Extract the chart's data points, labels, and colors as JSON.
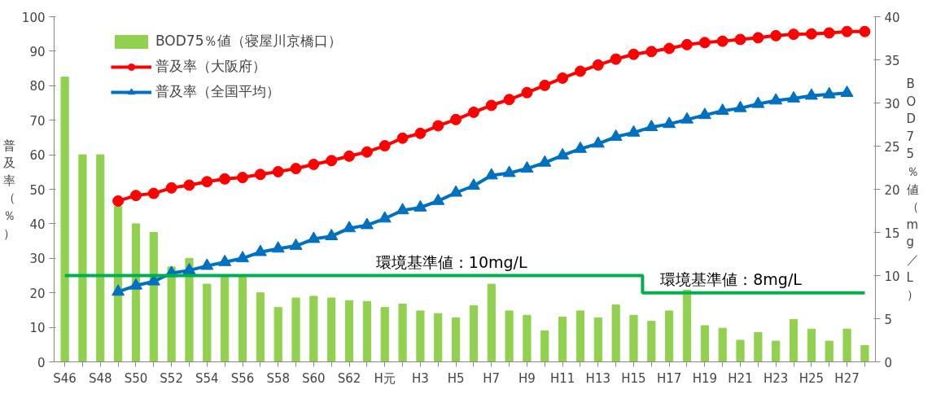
{
  "chart_data": {
    "type": "bar",
    "ylabel": "普及率（％）",
    "y2label": "BOD75％値（mg／L）",
    "categories": [
      "S46",
      null,
      "S48",
      null,
      "S50",
      null,
      "S52",
      null,
      "S54",
      null,
      "S56",
      null,
      "S58",
      null,
      "S60",
      null,
      "S62",
      null,
      "H元",
      null,
      "H3",
      null,
      "H5",
      null,
      "H7",
      null,
      "H9",
      null,
      "H11",
      null,
      "H13",
      null,
      "H15",
      null,
      "H17",
      null,
      "H19",
      null,
      "H21",
      null,
      "H23",
      null,
      "H25",
      null,
      "H27",
      null
    ],
    "series": [
      {
        "name": "BOD75％値（寝屋川京橋口）",
        "axis": "y2",
        "color": "#92d050",
        "values": [
          33,
          24,
          24,
          18,
          16,
          15,
          11,
          12,
          9,
          10,
          10,
          8,
          6.3,
          7.4,
          7.6,
          7.4,
          7.1,
          7.0,
          6.3,
          6.7,
          5.9,
          5.6,
          5.1,
          6.5,
          9.0,
          5.9,
          5.4,
          3.6,
          5.2,
          5.9,
          5.1,
          6.6,
          5.4,
          4.7,
          5.9,
          8.3,
          4.2,
          3.9,
          2.5,
          3.4,
          2.4,
          4.9,
          3.8,
          2.4,
          3.8,
          1.9
        ]
      },
      {
        "name": "普及率（大阪府）",
        "type": "line",
        "marker": "circle",
        "color": "#ff0000",
        "values": [
          null,
          null,
          null,
          46.6,
          48.2,
          48.8,
          50.4,
          51.2,
          52.2,
          53.0,
          53.4,
          54.3,
          55.1,
          56.0,
          57.2,
          58.3,
          59.6,
          60.8,
          62.6,
          64.8,
          66.2,
          68.4,
          70.2,
          72.3,
          74.3,
          76.0,
          78.0,
          80.1,
          82.2,
          84.2,
          86.0,
          87.7,
          89.1,
          89.9,
          90.8,
          91.9,
          92.5,
          92.9,
          93.4,
          93.9,
          94.5,
          94.9,
          95.0,
          95.3,
          95.7,
          95.7
        ]
      },
      {
        "name": "普及率（全国平均）",
        "type": "line",
        "marker": "triangle",
        "color": "#0070c0",
        "values": [
          null,
          null,
          null,
          20.3,
          22.1,
          23.3,
          25.7,
          26.5,
          27.8,
          28.9,
          30.0,
          31.8,
          32.8,
          33.6,
          35.6,
          36.4,
          38.7,
          39.6,
          41.5,
          43.9,
          44.7,
          46.6,
          49.0,
          51.0,
          54.0,
          54.7,
          56.0,
          57.7,
          59.8,
          61.7,
          63.2,
          65.2,
          66.4,
          68.0,
          68.9,
          70.2,
          71.5,
          72.7,
          73.5,
          74.7,
          75.7,
          76.3,
          77.1,
          77.5,
          77.9,
          null
        ]
      },
      {
        "type": "step",
        "axis": "y2",
        "color": "#00b050",
        "values": [
          10,
          10,
          10,
          10,
          10,
          10,
          10,
          10,
          10,
          10,
          10,
          10,
          10,
          10,
          10,
          10,
          10,
          10,
          10,
          10,
          10,
          10,
          10,
          10,
          10,
          10,
          10,
          10,
          10,
          10,
          10,
          10,
          10,
          8,
          8,
          8,
          8,
          8,
          8,
          8,
          8,
          8,
          8,
          8,
          8,
          8
        ]
      }
    ],
    "annotations": [
      {
        "text": "環境基準値：10mg/L",
        "x": "H元",
        "y": 25
      },
      {
        "text": "環境基準値：8mg/L",
        "x": "H17",
        "y": 20
      }
    ],
    "ylim": [
      0,
      100
    ],
    "yticks": [
      0,
      10,
      20,
      30,
      40,
      50,
      60,
      70,
      80,
      90,
      100
    ],
    "y2lim": [
      0,
      40
    ],
    "y2ticks": [
      0,
      5,
      10,
      15,
      20,
      25,
      30,
      35,
      40
    ],
    "grid": false,
    "legend": "top left"
  }
}
